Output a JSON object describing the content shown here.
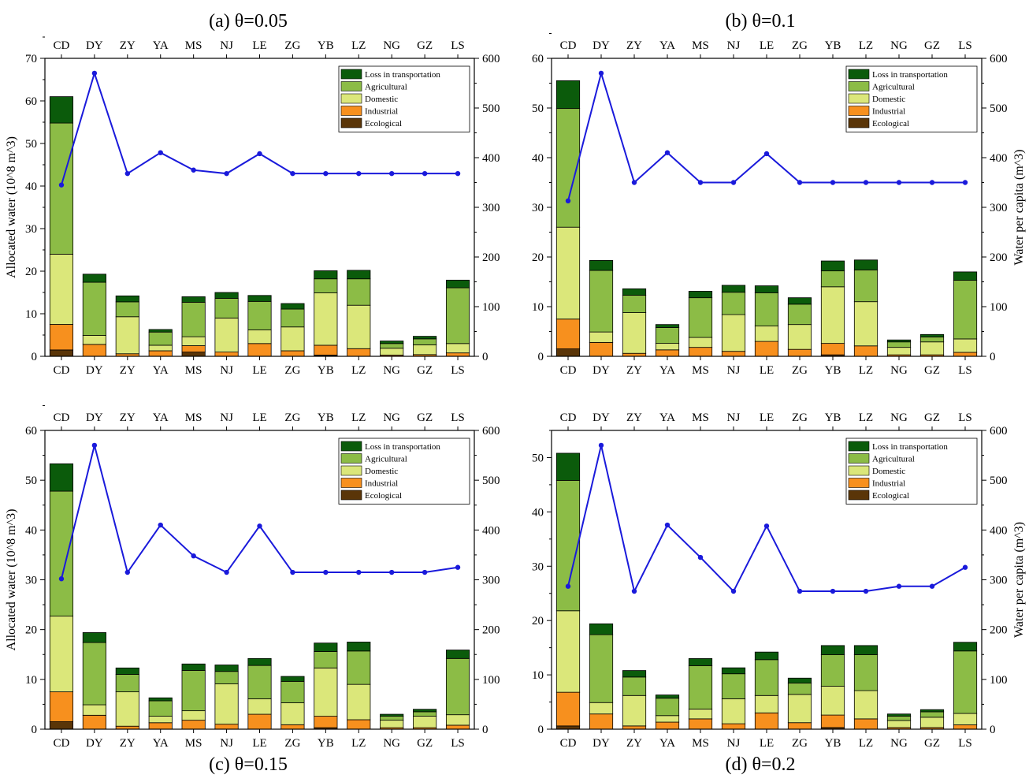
{
  "colors": {
    "Ecological": "#5a3508",
    "Industrial": "#f7901e",
    "Domestic": "#dbe77a",
    "Agricultural": "#8cbc46",
    "Loss in transportation": "#0b5b0b",
    "line": "#1a1adb"
  },
  "chart_data": [
    {
      "type": "bar",
      "title": "(a) θ=0.05",
      "title_position": "top",
      "categories": [
        "CD",
        "DY",
        "ZY",
        "YA",
        "MS",
        "NJ",
        "LE",
        "ZG",
        "YB",
        "LZ",
        "NG",
        "GZ",
        "LS"
      ],
      "ylabel": "Allocated water (10^8 m^3)",
      "ylabel2": "",
      "ylim": [
        0,
        70
      ],
      "yticks": [
        0,
        10,
        20,
        30,
        40,
        50,
        60,
        70
      ],
      "y2lim": [
        0,
        600
      ],
      "y2ticks": [
        0,
        100,
        200,
        300,
        400,
        500,
        600
      ],
      "stack_order": [
        "Ecological",
        "Industrial",
        "Domestic",
        "Agricultural",
        "Loss in transportation"
      ],
      "series": [
        {
          "name": "Ecological",
          "values": [
            1.5,
            0,
            0,
            0,
            1,
            0,
            0,
            0,
            0.3,
            0,
            0,
            0,
            0
          ]
        },
        {
          "name": "Industrial",
          "values": [
            6,
            2.8,
            0.6,
            1.3,
            1.5,
            1,
            3,
            1.3,
            2.3,
            1.8,
            0.3,
            0.4,
            0.8
          ]
        },
        {
          "name": "Domestic",
          "values": [
            16.5,
            2.1,
            8.7,
            1.3,
            2.1,
            8,
            3.2,
            5.6,
            12.3,
            10.2,
            1.6,
            2.3,
            2.2
          ]
        },
        {
          "name": "Agricultural",
          "values": [
            30.8,
            12.5,
            3.5,
            3.1,
            8.1,
            4.6,
            6.7,
            4.2,
            3.3,
            6.2,
            1.1,
            1.4,
            13.1
          ]
        },
        {
          "name": "Loss in transportation",
          "values": [
            6.2,
            1.9,
            1.4,
            0.6,
            1.3,
            1.4,
            1.4,
            1.3,
            1.9,
            2,
            0.6,
            0.6,
            1.8
          ]
        }
      ],
      "line": {
        "name": "",
        "values": [
          345,
          570,
          368,
          410,
          375,
          368,
          408,
          368,
          368,
          368,
          368,
          368,
          368
        ]
      }
    },
    {
      "type": "bar",
      "title": "(b) θ=0.1",
      "title_position": "top",
      "categories": [
        "CD",
        "DY",
        "ZY",
        "YA",
        "MS",
        "NJ",
        "LE",
        "ZG",
        "YB",
        "LZ",
        "NG",
        "GZ",
        "LS"
      ],
      "ylabel": "",
      "ylabel2": "Water per capita (m^3)",
      "ylim": [
        0,
        60
      ],
      "yticks": [
        0,
        10,
        20,
        30,
        40,
        50,
        60
      ],
      "y2lim": [
        0,
        600
      ],
      "y2ticks": [
        0,
        100,
        200,
        300,
        400,
        500,
        600
      ],
      "stack_order": [
        "Ecological",
        "Industrial",
        "Domestic",
        "Agricultural",
        "Loss in transportation"
      ],
      "series": [
        {
          "name": "Ecological",
          "values": [
            1.5,
            0,
            0,
            0,
            0,
            0,
            0,
            0,
            0.3,
            0,
            0,
            0,
            0
          ]
        },
        {
          "name": "Industrial",
          "values": [
            6,
            2.8,
            0.6,
            1.3,
            1.8,
            1,
            3,
            1.4,
            2.3,
            2.1,
            0.3,
            0.3,
            0.8
          ]
        },
        {
          "name": "Domestic",
          "values": [
            18.5,
            2.1,
            8.2,
            1.3,
            2,
            7.4,
            3.1,
            5,
            11.4,
            8.9,
            1.5,
            2.6,
            2.7
          ]
        },
        {
          "name": "Agricultural",
          "values": [
            23.9,
            12.4,
            3.5,
            3.2,
            8,
            4.5,
            6.7,
            4.1,
            3.2,
            6.4,
            1.1,
            1,
            11.8
          ]
        },
        {
          "name": "Loss in transportation",
          "values": [
            5.6,
            2,
            1.3,
            0.6,
            1.3,
            1.4,
            1.4,
            1.3,
            2,
            2,
            0.4,
            0.5,
            1.7
          ]
        }
      ],
      "line": {
        "name": "",
        "values": [
          313,
          570,
          350,
          410,
          350,
          350,
          408,
          350,
          350,
          350,
          350,
          350,
          350
        ]
      }
    },
    {
      "type": "bar",
      "title": "(c) θ=0.15",
      "title_position": "bottom",
      "categories": [
        "CD",
        "DY",
        "ZY",
        "YA",
        "MS",
        "NJ",
        "LE",
        "ZG",
        "YB",
        "LZ",
        "NG",
        "GZ",
        "LS"
      ],
      "ylabel": "Allocated water (10^8 m^3)",
      "ylabel2": "",
      "ylim": [
        0,
        60
      ],
      "yticks": [
        0,
        10,
        20,
        30,
        40,
        50,
        60
      ],
      "y2lim": [
        0,
        600
      ],
      "y2ticks": [
        0,
        100,
        200,
        300,
        400,
        500,
        600
      ],
      "stack_order": [
        "Ecological",
        "Industrial",
        "Domestic",
        "Agricultural",
        "Loss in transportation"
      ],
      "series": [
        {
          "name": "Ecological",
          "values": [
            1.5,
            0,
            0,
            0,
            0,
            0,
            0,
            0,
            0.3,
            0,
            0,
            0,
            0
          ]
        },
        {
          "name": "Industrial",
          "values": [
            6,
            2.8,
            0.6,
            1.3,
            1.8,
            1,
            3,
            0.9,
            2.3,
            1.9,
            0.3,
            0.3,
            0.8
          ]
        },
        {
          "name": "Domestic",
          "values": [
            15.2,
            2.1,
            6.9,
            1.3,
            1.9,
            8.1,
            3.1,
            4.4,
            9.7,
            7.1,
            1.5,
            2.3,
            2.1
          ]
        },
        {
          "name": "Agricultural",
          "values": [
            25.1,
            12.5,
            3.5,
            3.1,
            8.1,
            2.5,
            6.7,
            4.3,
            3.3,
            6.7,
            0.8,
            0.9,
            11.3
          ]
        },
        {
          "name": "Loss in transportation",
          "values": [
            5.5,
            2,
            1.3,
            0.6,
            1.3,
            1.3,
            1.4,
            1,
            1.7,
            1.8,
            0.4,
            0.5,
            1.7
          ]
        }
      ],
      "line": {
        "name": "",
        "values": [
          302,
          570,
          315,
          410,
          348,
          315,
          408,
          315,
          315,
          315,
          315,
          315,
          325
        ]
      }
    },
    {
      "type": "bar",
      "title": "(d) θ=0.2",
      "title_position": "bottom",
      "categories": [
        "CD",
        "DY",
        "ZY",
        "YA",
        "MS",
        "NJ",
        "LE",
        "ZG",
        "YB",
        "LZ",
        "NG",
        "GZ",
        "LS"
      ],
      "ylabel": "",
      "ylabel2": "Water per capita (m^3)",
      "ylim": [
        0,
        55
      ],
      "yticks": [
        0,
        10,
        20,
        30,
        40,
        50
      ],
      "y2lim": [
        0,
        600
      ],
      "y2ticks": [
        0,
        100,
        200,
        300,
        400,
        500,
        600
      ],
      "stack_order": [
        "Ecological",
        "Industrial",
        "Domestic",
        "Agricultural",
        "Loss in transportation"
      ],
      "series": [
        {
          "name": "Ecological",
          "values": [
            0.6,
            0,
            0,
            0,
            0,
            0,
            0,
            0,
            0.3,
            0,
            0,
            0,
            0
          ]
        },
        {
          "name": "Industrial",
          "values": [
            6.2,
            2.8,
            0.6,
            1.3,
            1.9,
            1,
            3,
            1.2,
            2.3,
            1.9,
            0.3,
            0.3,
            0.8
          ]
        },
        {
          "name": "Domestic",
          "values": [
            15,
            2.1,
            5.6,
            1.2,
            1.8,
            4.6,
            3.2,
            5.2,
            5.3,
            5.2,
            1.3,
            1.9,
            2.1
          ]
        },
        {
          "name": "Agricultural",
          "values": [
            24,
            12.5,
            3.4,
            3.2,
            8,
            4.6,
            6.6,
            2.1,
            5.8,
            6.6,
            0.8,
            1,
            11.5
          ]
        },
        {
          "name": "Loss in transportation",
          "values": [
            5,
            2,
            1.2,
            0.6,
            1.3,
            1.1,
            1.4,
            0.9,
            1.7,
            1.7,
            0.4,
            0.4,
            1.6
          ]
        }
      ],
      "line": {
        "name": "",
        "values": [
          287,
          570,
          277,
          410,
          345,
          277,
          408,
          277,
          277,
          277,
          287,
          287,
          325
        ]
      }
    }
  ]
}
